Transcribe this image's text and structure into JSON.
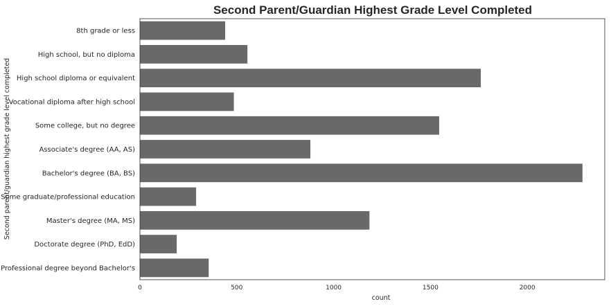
{
  "chart_data": {
    "type": "bar",
    "orientation": "horizontal",
    "title": "Second Parent/Guardian Highest Grade Level Completed",
    "xlabel": "count",
    "ylabel": "Second parent/guardian highest grade level completed",
    "categories": [
      "8th grade or less",
      "High school, but no diploma",
      "High school diploma or equivalent",
      "Vocational diploma after high school",
      "Some college, but no degree",
      "Associate's degree (AA, AS)",
      "Bachelor's degree (BA, BS)",
      "Some graduate/professional education",
      "Master's degree (MA, MS)",
      "Doctorate degree (PhD, EdD)",
      "Professional degree beyond Bachelor's"
    ],
    "values": [
      440,
      555,
      1760,
      485,
      1545,
      880,
      2285,
      290,
      1185,
      190,
      355
    ],
    "xlim": [
      0,
      2400
    ],
    "xticks": [
      0,
      500,
      1000,
      1500,
      2000
    ],
    "bar_color": "#696969",
    "grid": false,
    "legend": "none"
  }
}
